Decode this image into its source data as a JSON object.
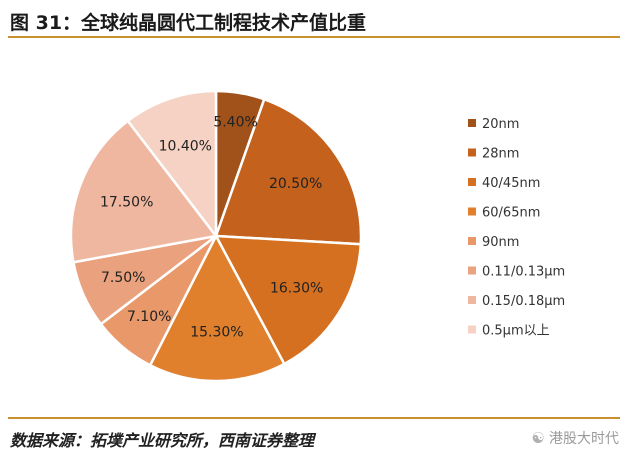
{
  "header": {
    "title": "图 31：全球纯晶圆代工制程技术产值比重"
  },
  "chart_data": {
    "type": "pie",
    "title": "",
    "legend_position": "right",
    "categories": [
      "20nm",
      "28nm",
      "40/45nm",
      "60/65nm",
      "90nm",
      "0.11/0.13μm",
      "0.15/0.18μm",
      "0.5μm以上"
    ],
    "values": [
      5.4,
      20.5,
      16.3,
      15.3,
      7.1,
      7.5,
      17.5,
      10.4
    ],
    "labels": [
      "5.40%",
      "20.50%",
      "16.30%",
      "15.30%",
      "7.10%",
      "7.50%",
      "17.50%",
      "10.40%"
    ],
    "colors": [
      "#a0521a",
      "#c3611d",
      "#d4701f",
      "#e07f2c",
      "#e9986a",
      "#eaa17e",
      "#f0b7a0",
      "#f5d2c3"
    ]
  },
  "footer": {
    "source": "数据来源：拓墣产业研究所，西南证券整理",
    "watermark": "港股大时代",
    "watermark_icon": "wechat-icon"
  }
}
